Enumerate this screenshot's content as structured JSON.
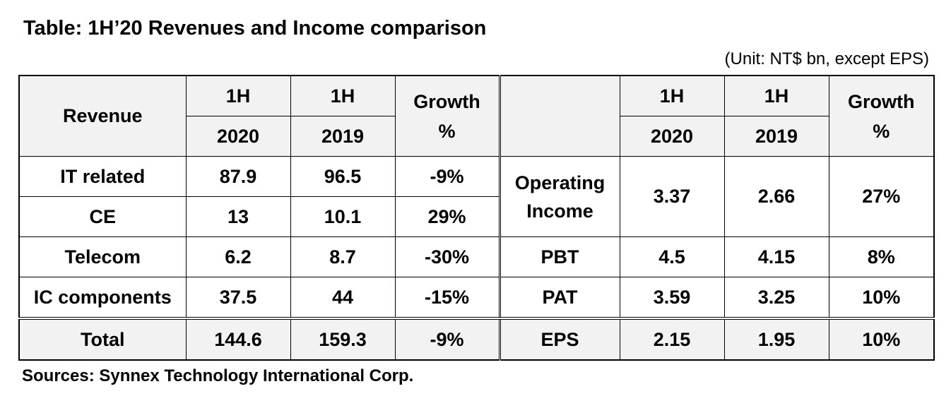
{
  "title": "Table: 1H’20 Revenues and Income comparison",
  "unit_note": "(Unit: NT$ bn, except EPS)",
  "header": {
    "left_label": "Revenue",
    "col1_top": "1H",
    "col1_bottom": "2020",
    "col2_top": "1H",
    "col2_bottom": "2019",
    "growth_line1": "Growth",
    "growth_line2": "%",
    "right_label": "",
    "col3_top": "1H",
    "col3_bottom": "2020",
    "col4_top": "1H",
    "col4_bottom": "2019",
    "growth2_line1": "Growth",
    "growth2_line2": "%"
  },
  "revenue_rows": [
    {
      "label": "IT related",
      "h1_2020": "87.9",
      "h1_2019": "96.5",
      "growth": "-9%"
    },
    {
      "label": "CE",
      "h1_2020": "13",
      "h1_2019": "10.1",
      "growth": "29%"
    },
    {
      "label": "Telecom",
      "h1_2020": "6.2",
      "h1_2019": "8.7",
      "growth": "-30%"
    },
    {
      "label": "IC components",
      "h1_2020": "37.5",
      "h1_2019": "44",
      "growth": "-15%"
    }
  ],
  "revenue_total": {
    "label": "Total",
    "h1_2020": "144.6",
    "h1_2019": "159.3",
    "growth": "-9%"
  },
  "income_rows": [
    {
      "label_line1": "Operating",
      "label_line2": "Income",
      "h1_2020": "3.37",
      "h1_2019": "2.66",
      "growth": "27%"
    },
    {
      "label": "PBT",
      "h1_2020": "4.5",
      "h1_2019": "4.15",
      "growth": "8%"
    },
    {
      "label": "PAT",
      "h1_2020": "3.59",
      "h1_2019": "3.25",
      "growth": "10%"
    },
    {
      "label": "EPS",
      "h1_2020": "2.15",
      "h1_2019": "1.95",
      "growth": "10%"
    }
  ],
  "source": "Sources: Synnex Technology International Corp."
}
